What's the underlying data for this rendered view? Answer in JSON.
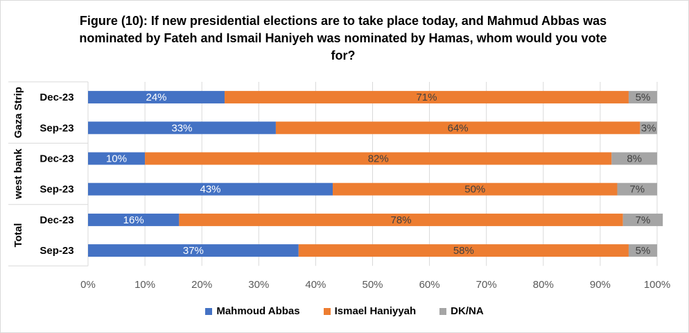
{
  "chart_data": {
    "type": "bar",
    "orientation": "horizontal",
    "stacked": true,
    "title_lines": [
      "Figure (10): If new presidential elections are to take place today, and Mahmud Abbas was",
      "nominated by Fateh and Ismail Haniyeh was nominated by Hamas, whom would you vote",
      "for?"
    ],
    "groups": [
      {
        "name": "Gaza Strip",
        "categories": [
          "Dec-23",
          "Sep-23"
        ]
      },
      {
        "name": "west bank",
        "categories": [
          "Dec-23",
          "Sep-23"
        ]
      },
      {
        "name": "Total",
        "categories": [
          "Dec-23",
          "Sep-23"
        ]
      }
    ],
    "series": [
      {
        "name": "Mahmoud Abbas",
        "color": "#4472C4",
        "values": [
          24,
          33,
          10,
          43,
          16,
          37
        ]
      },
      {
        "name": "Ismael Haniyyah",
        "color": "#ED7D31",
        "values": [
          71,
          64,
          82,
          50,
          78,
          58
        ]
      },
      {
        "name": "DK/NA",
        "color": "#A5A5A5",
        "values": [
          5,
          3,
          8,
          7,
          7,
          5
        ]
      }
    ],
    "data_labels": [
      [
        "24%",
        "71%",
        "5%"
      ],
      [
        "33%",
        "64%",
        "3%"
      ],
      [
        "10%",
        "82%",
        "8%"
      ],
      [
        "43%",
        "50%",
        "7%"
      ],
      [
        "16%",
        "78%",
        "7%"
      ],
      [
        "37%",
        "58%",
        "5%"
      ]
    ],
    "x_ticks": [
      "0%",
      "10%",
      "20%",
      "30%",
      "40%",
      "50%",
      "60%",
      "70%",
      "80%",
      "90%",
      "100%"
    ],
    "xlim": [
      0,
      100
    ],
    "grid": true,
    "legend_position": "bottom"
  }
}
